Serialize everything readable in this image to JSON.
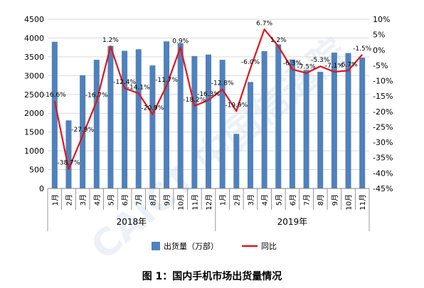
{
  "caption": "图 1：国内手机市场出货量情况",
  "chart_data": {
    "type": "bar",
    "months": [
      "1月",
      "2月",
      "3月",
      "4月",
      "5月",
      "6月",
      "7月",
      "8月",
      "9月",
      "10月",
      "11月",
      "12月",
      "1月",
      "2月",
      "3月",
      "4月",
      "5月",
      "6月",
      "7月",
      "8月",
      "9月",
      "10月",
      "11月"
    ],
    "years": [
      {
        "label": "2018年",
        "count": 12
      },
      {
        "label": "2019年",
        "count": 11
      }
    ],
    "series": [
      {
        "name": "出货量（万部）",
        "kind": "bar",
        "axis": "left",
        "color": "#4f81bd",
        "values": [
          3900,
          1810,
          3010,
          3420,
          3790,
          3660,
          3700,
          3270,
          3910,
          3860,
          3520,
          3560,
          3420,
          1450,
          2830,
          3650,
          3830,
          3430,
          3150,
          3100,
          3610,
          3600,
          3480
        ]
      },
      {
        "name": "同比",
        "kind": "line",
        "axis": "right",
        "color": "#e0151b",
        "values": [
          -16.6,
          -38.7,
          -27.9,
          -16.7,
          1.2,
          -12.4,
          -14.1,
          -20.9,
          -11.7,
          0.9,
          -18.2,
          -16.3,
          -12.8,
          -19.9,
          -6.0,
          6.7,
          1.2,
          -6.3,
          -7.5,
          -5.3,
          -7.1,
          -6.7,
          -1.5
        ],
        "labels": [
          "-16.6%",
          "-38.7%",
          "-27.9%",
          "-16.7%",
          "1.2%",
          "-12.4%",
          "-14.1%",
          "-20.9%",
          "-11.7%",
          "0.9%",
          "-18.2%",
          "-16.3%",
          "-12.8%",
          "-19.9%",
          "-6.0%",
          "6.7%",
          "1.2%",
          "-6.3%",
          "-7.5%",
          "-5.3%",
          "-7.1%",
          "-6.7%",
          "-1.5%"
        ]
      }
    ],
    "left_axis": {
      "min": 0,
      "max": 4500,
      "step": 500,
      "ticks": [
        "0",
        "500",
        "1000",
        "1500",
        "2000",
        "2500",
        "3000",
        "3500",
        "4000",
        "4500"
      ]
    },
    "right_axis": {
      "min": -45,
      "max": 10,
      "step": 5,
      "ticks": [
        "-45%",
        "-40%",
        "-35%",
        "-30%",
        "-25%",
        "-20%",
        "-15%",
        "-10%",
        "-5%",
        "0%",
        "5%",
        "10%"
      ]
    },
    "grid": true,
    "legend_position": "bottom"
  },
  "watermark": "CAICT 中国信通院"
}
